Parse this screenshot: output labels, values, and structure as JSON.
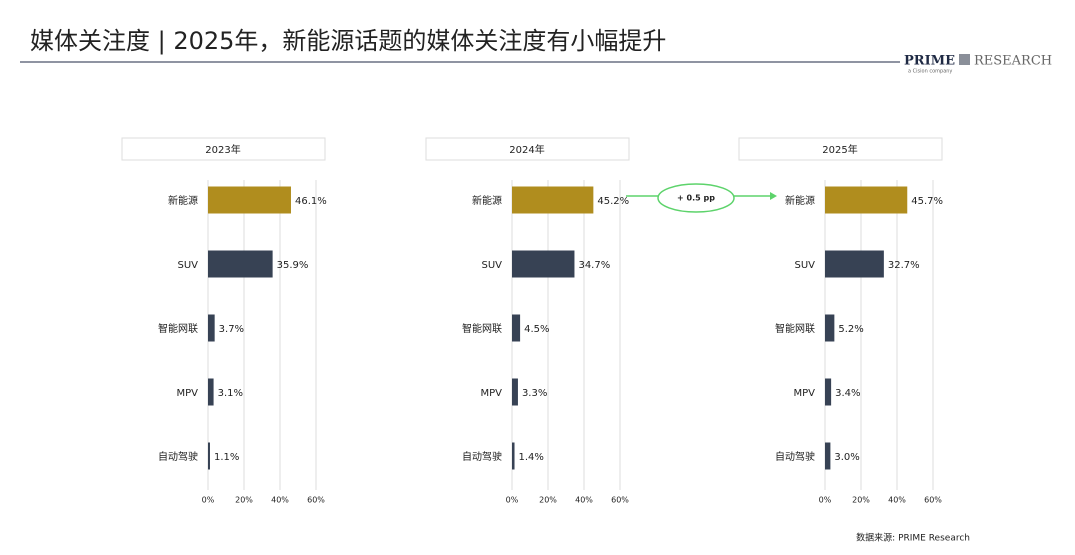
{
  "title": "媒体关注度 | 2025年，新能源话题的媒体关注度有小幅提升",
  "logo": {
    "name": "PRIME",
    "suffix": "RESEARCH",
    "tagline": "a Cision company"
  },
  "annotation": "+ 0.5 pp",
  "source": "数据来源: PRIME Research",
  "chart_data": [
    {
      "type": "bar",
      "orientation": "horizontal",
      "title": "2023年",
      "categories": [
        "新能源",
        "SUV",
        "智能网联",
        "MPV",
        "自动驾驶"
      ],
      "values": [
        46.1,
        35.9,
        3.7,
        3.1,
        1.1
      ],
      "value_labels": [
        "46.1%",
        "35.9%",
        "3.7%",
        "3.1%",
        "1.1%"
      ],
      "colors": [
        "#b08d1e",
        "#374254",
        "#374254",
        "#374254",
        "#374254"
      ],
      "xlim": [
        0,
        60
      ],
      "xticks": [
        {
          "value": 0,
          "label": "0%"
        },
        {
          "value": 20,
          "label": "20%"
        },
        {
          "value": 40,
          "label": "40%"
        },
        {
          "value": 60,
          "label": "60%"
        }
      ],
      "grid": true
    },
    {
      "type": "bar",
      "orientation": "horizontal",
      "title": "2024年",
      "categories": [
        "新能源",
        "SUV",
        "智能网联",
        "MPV",
        "自动驾驶"
      ],
      "values": [
        45.2,
        34.7,
        4.5,
        3.3,
        1.4
      ],
      "value_labels": [
        "45.2%",
        "34.7%",
        "4.5%",
        "3.3%",
        "1.4%"
      ],
      "colors": [
        "#b08d1e",
        "#374254",
        "#374254",
        "#374254",
        "#374254"
      ],
      "xlim": [
        0,
        60
      ],
      "xticks": [
        {
          "value": 0,
          "label": "0%"
        },
        {
          "value": 20,
          "label": "20%"
        },
        {
          "value": 40,
          "label": "40%"
        },
        {
          "value": 60,
          "label": "60%"
        }
      ],
      "grid": true
    },
    {
      "type": "bar",
      "orientation": "horizontal",
      "title": "2025年",
      "categories": [
        "新能源",
        "SUV",
        "智能网联",
        "MPV",
        "自动驾驶"
      ],
      "values": [
        45.7,
        32.7,
        5.2,
        3.4,
        3.0
      ],
      "value_labels": [
        "45.7%",
        "32.7%",
        "5.2%",
        "3.4%",
        "3.0%"
      ],
      "colors": [
        "#b08d1e",
        "#374254",
        "#374254",
        "#374254",
        "#374254"
      ],
      "xlim": [
        0,
        60
      ],
      "xticks": [
        {
          "value": 0,
          "label": "0%"
        },
        {
          "value": 20,
          "label": "20%"
        },
        {
          "value": 40,
          "label": "40%"
        },
        {
          "value": 60,
          "label": "60%"
        }
      ],
      "grid": true
    }
  ]
}
